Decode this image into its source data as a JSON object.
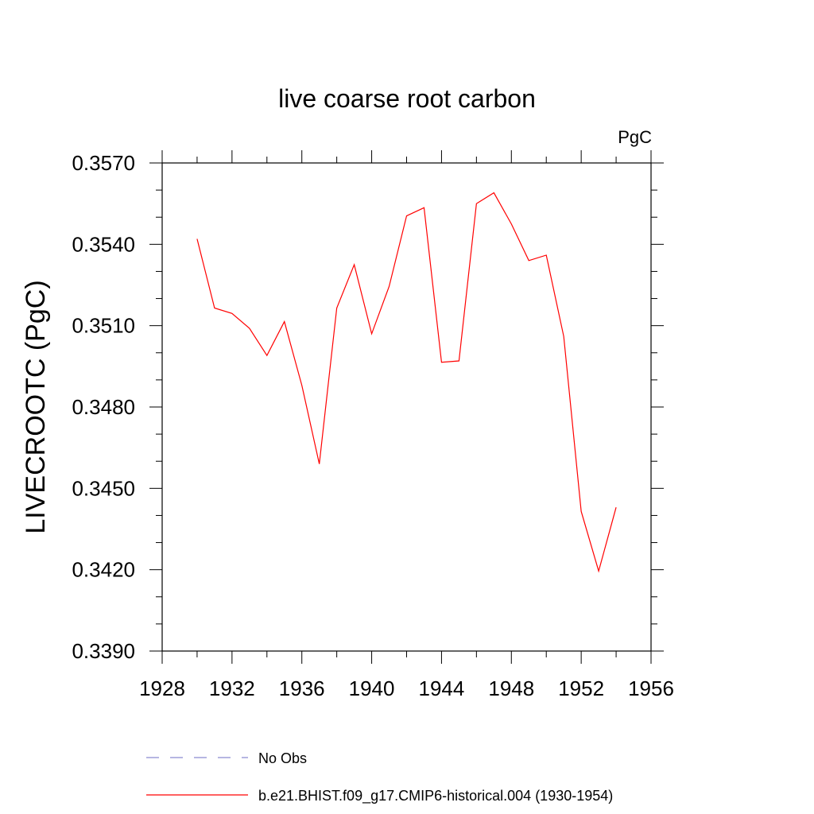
{
  "chart_data": {
    "type": "line",
    "title": "live coarse root carbon",
    "units": "PgC",
    "xlabel": "",
    "ylabel": "LIVECROOTC  (PgC)",
    "xlim": [
      1928,
      1956
    ],
    "ylim": [
      0.339,
      0.357
    ],
    "x_ticks": [
      1928,
      1932,
      1936,
      1940,
      1944,
      1948,
      1952,
      1956
    ],
    "y_ticks": [
      0.339,
      0.342,
      0.345,
      0.348,
      0.351,
      0.354,
      0.357
    ],
    "x_tick_labels": [
      "1928",
      "1932",
      "1936",
      "1940",
      "1944",
      "1948",
      "1952",
      "1956"
    ],
    "y_tick_labels": [
      "0.3390",
      "0.3420",
      "0.3450",
      "0.3480",
      "0.3510",
      "0.3540",
      "0.3570"
    ],
    "x_minor_step": 2,
    "y_minor_step": 0.001,
    "grid": false,
    "legend_position": "bottom",
    "series": [
      {
        "name": "No Obs",
        "color": "#8a8ad0",
        "style": "dashed",
        "x": [],
        "values": []
      },
      {
        "name": "b.e21.BHIST.f09_g17.CMIP6-historical.004 (1930-1954)",
        "color": "#ff0000",
        "style": "solid",
        "x": [
          1930,
          1931,
          1932,
          1933,
          1934,
          1935,
          1936,
          1937,
          1938,
          1939,
          1940,
          1941,
          1942,
          1943,
          1944,
          1945,
          1946,
          1947,
          1948,
          1949,
          1950,
          1951,
          1952,
          1953,
          1954
        ],
        "values": [
          0.3542,
          0.35165,
          0.35145,
          0.3509,
          0.3499,
          0.35115,
          0.3488,
          0.3459,
          0.35165,
          0.35325,
          0.3507,
          0.35245,
          0.35505,
          0.35535,
          0.34965,
          0.3497,
          0.3555,
          0.3559,
          0.35475,
          0.3534,
          0.3536,
          0.3506,
          0.34415,
          0.34195,
          0.3443
        ]
      }
    ]
  }
}
